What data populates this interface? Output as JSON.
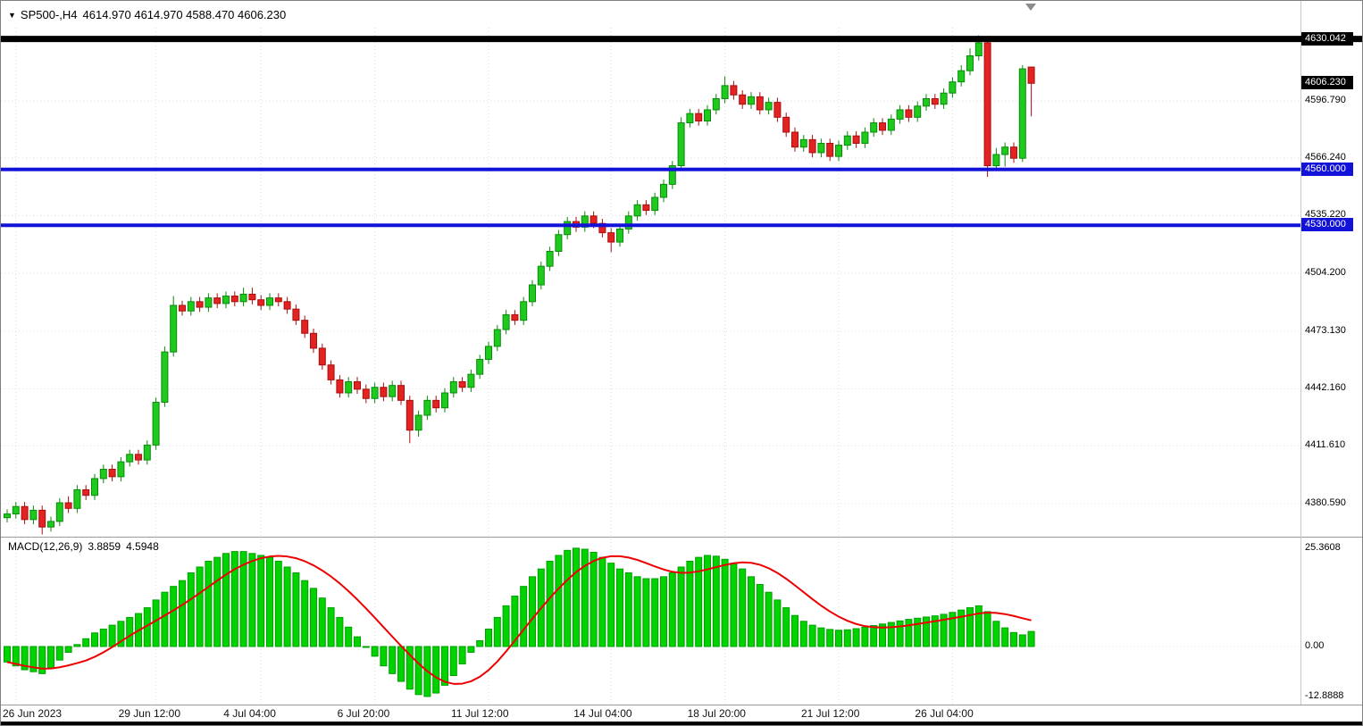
{
  "header": {
    "symbol_period": "SP500-,H4",
    "ohlc": "4614.970 4614.970 4588.470 4606.230"
  },
  "macd": {
    "label": "MACD(12,26,9)",
    "value": "3.8859",
    "signal": "4.5948"
  },
  "colors": {
    "bull": "#1fca1f",
    "bull_border": "#0a8a0a",
    "bear": "#e32222",
    "bear_border": "#a80f0f",
    "macd_bar": "#00d300",
    "macd_bar_border": "#00a000",
    "signal_line": "#ee0000",
    "hline_blue": "#1212d8",
    "hline_black": "#000000",
    "grid": "#dcdcdc",
    "axis_text": "#000000"
  },
  "chart_data": [
    {
      "type": "candlestick",
      "symbol": "SP500-",
      "timeframe": "H4",
      "ylim": [
        4362.8,
        4636.1
      ],
      "grid_price_labels": [
        "4596.790",
        "4566.240",
        "4535.220",
        "4504.200",
        "4473.130",
        "4442.160",
        "4411.610",
        "4380.590"
      ],
      "time_labels": [
        {
          "label": "26 Jun 2023",
          "index": 1
        },
        {
          "label": "29 Jun 12:00",
          "index": 17
        },
        {
          "label": "4 Jul 04:00",
          "index": 29
        },
        {
          "label": "6 Jul 20:00",
          "index": 42
        },
        {
          "label": "11 Jul 12:00",
          "index": 55
        },
        {
          "label": "14 Jul 04:00",
          "index": 69
        },
        {
          "label": "18 Jul 20:00",
          "index": 82
        },
        {
          "label": "21 Jul 12:00",
          "index": 95
        },
        {
          "label": "26 Jul 04:00",
          "index": 108
        }
      ],
      "hlines": [
        {
          "price": 4630.042,
          "label": "4630.042",
          "style": "black",
          "thickness": 7
        },
        {
          "price": 4560.0,
          "label": "4560.000",
          "style": "blue",
          "thickness": 4
        },
        {
          "price": 4530.0,
          "label": "4530.000",
          "style": "blue",
          "thickness": 4
        }
      ],
      "last_price": {
        "price": 4606.23,
        "label": "4606.230",
        "style": "black"
      },
      "ohlc": [
        [
          4373,
          4377.5,
          4370.5,
          4375
        ],
        [
          4375,
          4381.5,
          4372.5,
          4379
        ],
        [
          4379,
          4381.5,
          4369.5,
          4372
        ],
        [
          4372,
          4379.5,
          4369.5,
          4377
        ],
        [
          4377,
          4379.5,
          4364,
          4368
        ],
        [
          4368,
          4373.5,
          4365.5,
          4371
        ],
        [
          4371,
          4383.5,
          4368.5,
          4381
        ],
        [
          4381,
          4384.5,
          4375.5,
          4378
        ],
        [
          4378,
          4390.5,
          4375.5,
          4388
        ],
        [
          4388,
          4390.5,
          4382.5,
          4385
        ],
        [
          4385,
          4396.5,
          4382.5,
          4394
        ],
        [
          4394,
          4401.5,
          4391.5,
          4399
        ],
        [
          4399,
          4401.5,
          4392.5,
          4395
        ],
        [
          4395,
          4405.5,
          4392.5,
          4403
        ],
        [
          4403,
          4409.5,
          4400.5,
          4407
        ],
        [
          4407,
          4409.5,
          4401.5,
          4404
        ],
        [
          4404,
          4414.5,
          4401.5,
          4412
        ],
        [
          4412,
          4437.5,
          4409.5,
          4435
        ],
        [
          4435,
          4465,
          4432.5,
          4462
        ],
        [
          4462,
          4492,
          4459.5,
          4487
        ],
        [
          4487,
          4489.5,
          4481.5,
          4484
        ],
        [
          4484,
          4491.5,
          4481.5,
          4489
        ],
        [
          4489,
          4491.5,
          4483.5,
          4486
        ],
        [
          4486,
          4493.5,
          4483.5,
          4491
        ],
        [
          4491,
          4493.5,
          4485.5,
          4488
        ],
        [
          4488,
          4494.5,
          4485.5,
          4492
        ],
        [
          4492,
          4494.5,
          4486.5,
          4489
        ],
        [
          4489,
          4496.5,
          4486.5,
          4493
        ],
        [
          4493,
          4496.5,
          4487.5,
          4490
        ],
        [
          4490,
          4492.5,
          4484.5,
          4487
        ],
        [
          4487,
          4493.5,
          4484.5,
          4491
        ],
        [
          4491,
          4493.5,
          4486.5,
          4489
        ],
        [
          4489,
          4491.5,
          4482.5,
          4485
        ],
        [
          4485,
          4487.5,
          4476.5,
          4479
        ],
        [
          4479,
          4481.5,
          4469.5,
          4472
        ],
        [
          4472,
          4474.5,
          4461.5,
          4464
        ],
        [
          4464,
          4466.5,
          4452.5,
          4455
        ],
        [
          4455,
          4457.5,
          4444.5,
          4447
        ],
        [
          4447,
          4449.5,
          4437.5,
          4440
        ],
        [
          4440,
          4448.5,
          4437.5,
          4446
        ],
        [
          4446,
          4448.5,
          4439.5,
          4442
        ],
        [
          4442,
          4444.5,
          4434.5,
          4437
        ],
        [
          4437,
          4445.5,
          4434.5,
          4443
        ],
        [
          4443,
          4445.5,
          4435.5,
          4438
        ],
        [
          4438,
          4446.5,
          4435.5,
          4444
        ],
        [
          4444,
          4446.5,
          4433.5,
          4436
        ],
        [
          4436,
          4438.5,
          4413,
          4420
        ],
        [
          4420,
          4430.5,
          4416.5,
          4428
        ],
        [
          4428,
          4438.5,
          4425.5,
          4436
        ],
        [
          4436,
          4438.5,
          4429.5,
          4432
        ],
        [
          4432,
          4442.5,
          4429.5,
          4440
        ],
        [
          4440,
          4448.5,
          4437.5,
          4446
        ],
        [
          4446,
          4448.5,
          4440.5,
          4443
        ],
        [
          4443,
          4452.5,
          4440.5,
          4450
        ],
        [
          4450,
          4460.5,
          4447.5,
          4458
        ],
        [
          4458,
          4467.5,
          4455.5,
          4465
        ],
        [
          4465,
          4476.5,
          4462.5,
          4474
        ],
        [
          4474,
          4484.5,
          4471.5,
          4482
        ],
        [
          4482,
          4484.5,
          4476.5,
          4479
        ],
        [
          4479,
          4491.5,
          4476.5,
          4489
        ],
        [
          4489,
          4500.5,
          4486.5,
          4498
        ],
        [
          4498,
          4510.5,
          4495.5,
          4508
        ],
        [
          4508,
          4518.5,
          4505.5,
          4516
        ],
        [
          4516,
          4527.5,
          4513.5,
          4525
        ],
        [
          4525,
          4534.5,
          4522.5,
          4532
        ],
        [
          4532,
          4534.5,
          4526.5,
          4529
        ],
        [
          4529,
          4537.5,
          4526.5,
          4535
        ],
        [
          4535,
          4537.5,
          4528.5,
          4531
        ],
        [
          4531,
          4533.5,
          4523.5,
          4526
        ],
        [
          4526,
          4528.5,
          4515.5,
          4521
        ],
        [
          4521,
          4530.5,
          4518.5,
          4528
        ],
        [
          4528,
          4537.5,
          4525.5,
          4535
        ],
        [
          4535,
          4543.5,
          4532.5,
          4541
        ],
        [
          4541,
          4543.5,
          4535.5,
          4538
        ],
        [
          4538,
          4547.5,
          4535.5,
          4545
        ],
        [
          4545,
          4554.5,
          4542.5,
          4552
        ],
        [
          4552,
          4564.5,
          4549.5,
          4562
        ],
        [
          4562,
          4588,
          4560,
          4585
        ],
        [
          4585,
          4592.5,
          4582.5,
          4590
        ],
        [
          4590,
          4592.5,
          4583.5,
          4586
        ],
        [
          4586,
          4594.5,
          4583.5,
          4592
        ],
        [
          4592,
          4600.5,
          4589.5,
          4598
        ],
        [
          4598,
          4610,
          4595.5,
          4605
        ],
        [
          4605,
          4607.5,
          4597.5,
          4600
        ],
        [
          4600,
          4602.5,
          4592.5,
          4595
        ],
        [
          4595,
          4601.5,
          4592.5,
          4599
        ],
        [
          4599,
          4601.5,
          4589.5,
          4592
        ],
        [
          4592,
          4598.5,
          4589.5,
          4596
        ],
        [
          4596,
          4598.5,
          4585.5,
          4588
        ],
        [
          4588,
          4590.5,
          4577.5,
          4580
        ],
        [
          4580,
          4582.5,
          4569.5,
          4572
        ],
        [
          4572,
          4578.5,
          4569.5,
          4576
        ],
        [
          4576,
          4578.5,
          4566.5,
          4569
        ],
        [
          4569,
          4576.5,
          4566.5,
          4574
        ],
        [
          4574,
          4576.5,
          4564.5,
          4567
        ],
        [
          4567,
          4575.5,
          4564.5,
          4573
        ],
        [
          4573,
          4580.5,
          4570.5,
          4578
        ],
        [
          4578,
          4580.5,
          4571.5,
          4574
        ],
        [
          4574,
          4582.5,
          4571.5,
          4580
        ],
        [
          4580,
          4587.5,
          4577.5,
          4585
        ],
        [
          4585,
          4587.5,
          4578.5,
          4581
        ],
        [
          4581,
          4589.5,
          4578.5,
          4587
        ],
        [
          4587,
          4594.5,
          4584.5,
          4592
        ],
        [
          4592,
          4594.5,
          4585.5,
          4588
        ],
        [
          4588,
          4596.5,
          4585.5,
          4594
        ],
        [
          4594,
          4600.5,
          4591.5,
          4598
        ],
        [
          4598,
          4600.5,
          4592.5,
          4595
        ],
        [
          4595,
          4603.5,
          4592.5,
          4601
        ],
        [
          4601,
          4609.5,
          4598.5,
          4607
        ],
        [
          4607,
          4616,
          4604.5,
          4613
        ],
        [
          4613,
          4625,
          4610.5,
          4621
        ],
        [
          4621,
          4632,
          4618.5,
          4628
        ],
        [
          4628,
          4629.5,
          4556,
          4562
        ],
        [
          4562,
          4571.5,
          4559.5,
          4568
        ],
        [
          4568,
          4574.5,
          4561.5,
          4572
        ],
        [
          4572,
          4574.5,
          4563.5,
          4566
        ],
        [
          4566,
          4616,
          4564,
          4614
        ],
        [
          4614.97,
          4614.97,
          4588.47,
          4606.23
        ]
      ]
    },
    {
      "type": "bar",
      "name": "MACD(12,26,9)",
      "ylim": [
        -14.98,
        28.1
      ],
      "axis_labels": [
        {
          "value": 25.3608,
          "label": "25.3608"
        },
        {
          "value": 0,
          "label": "0.00"
        },
        {
          "value": -12.8888,
          "label": "-12.8888"
        }
      ],
      "signal_smoothing": "SMA9",
      "values": [
        -4,
        -5,
        -6,
        -6.5,
        -7,
        -5.5,
        -3.5,
        -1.5,
        0.5,
        2,
        3.5,
        4.5,
        5.5,
        6.5,
        7.5,
        8.5,
        10,
        12,
        14,
        15.5,
        17,
        19,
        20.5,
        22,
        23,
        24,
        24.5,
        24.5,
        24,
        23.5,
        23,
        22,
        20.5,
        19,
        17,
        15,
        12.5,
        10,
        7.5,
        5,
        2.5,
        0,
        -2.5,
        -5,
        -7,
        -9,
        -11,
        -12.4,
        -12.8888,
        -12,
        -10,
        -7.5,
        -4.5,
        -1.5,
        1.5,
        4.5,
        7.5,
        10.5,
        13,
        15.5,
        18,
        20,
        22,
        23.5,
        24.8,
        25.3608,
        25.1,
        24.3,
        23,
        21.5,
        20,
        19,
        18,
        17.5,
        17.5,
        18,
        19,
        20.5,
        22,
        23,
        23.5,
        23.3,
        22.5,
        21.5,
        20,
        18,
        16,
        14,
        12,
        10,
        8,
        6.5,
        5.5,
        4.8,
        4.4,
        4.2,
        4.3,
        4.6,
        5,
        5.4,
        5.8,
        6.2,
        6.6,
        7,
        7.3,
        7.6,
        7.9,
        8.3,
        8.8,
        9.4,
        10,
        10.5,
        9,
        6.5,
        4.8,
        3.6,
        3,
        3.8859
      ]
    }
  ]
}
